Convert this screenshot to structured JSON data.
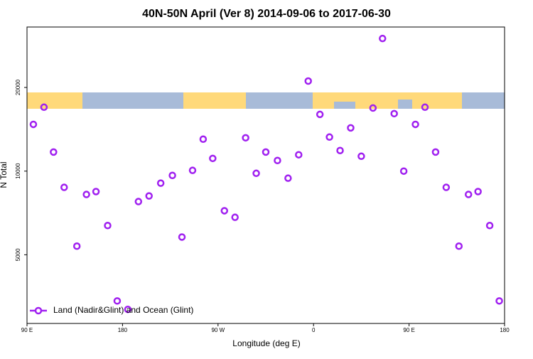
{
  "chart_data": {
    "type": "scatter",
    "title": "40N-50N April (Ver 8)   2014-09-06 to 2017-06-30",
    "x_label": "Longitude (deg E)",
    "y_label": "N Total",
    "xlim": [
      90,
      540
    ],
    "xticks": [
      {
        "value": 90,
        "label": "90 E"
      },
      180,
      {
        "value": 270,
        "label": "90 W"
      },
      {
        "value": 360,
        "label": "0"
      },
      {
        "value": 450,
        "label": "90 E"
      },
      {
        "value": 540,
        "label": "180"
      }
    ],
    "ylim": [
      2830,
      33000
    ],
    "y_log": true,
    "yticks": [
      5000,
      10000,
      20000
    ],
    "legend_position": "lower left",
    "series": [
      {
        "name": "Land (Nadir&Glint) and Ocean (Glint)",
        "color": "#a020f0",
        "x": [
          96,
          106,
          115,
          125,
          137,
          146,
          155,
          166,
          175,
          185,
          195,
          205,
          216,
          227,
          236,
          246,
          256,
          265,
          276,
          286,
          296,
          306,
          315,
          326,
          336,
          346,
          355,
          366,
          375,
          385,
          395,
          405,
          416,
          425,
          436,
          445,
          456,
          465,
          475,
          485,
          497,
          506,
          515,
          526,
          535
        ],
        "values": [
          14730,
          16980,
          11710,
          8740,
          5370,
          8240,
          8440,
          6370,
          3410,
          3180,
          7770,
          8140,
          9050,
          9650,
          5790,
          10060,
          13030,
          11110,
          7200,
          6820,
          13180,
          9820,
          11710,
          10920,
          9430,
          11450,
          21090,
          16000,
          13260,
          11860,
          14310,
          11310,
          16870,
          30000,
          16100,
          10000,
          14730,
          16980,
          11710,
          8740,
          5370,
          8240,
          8440,
          6370,
          3410
        ]
      }
    ]
  }
}
